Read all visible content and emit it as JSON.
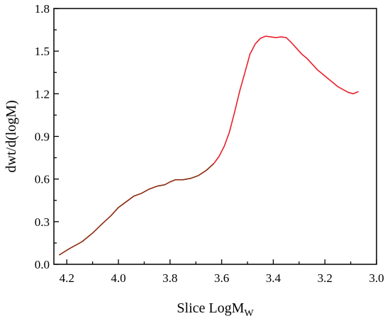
{
  "chart_data": {
    "type": "line",
    "title": "",
    "xlabel": "Slice LogM",
    "xlabel_sub": "W",
    "ylabel": "dwt/d(logM)",
    "xlim": [
      4.25,
      3.0
    ],
    "ylim": [
      0.0,
      1.8
    ],
    "x_reversed": true,
    "grid": false,
    "legend": "none",
    "x_ticks": [
      "4.2",
      "4.0",
      "3.8",
      "3.6",
      "3.4",
      "3.2",
      "3.0"
    ],
    "y_ticks": [
      "0.0",
      "0.3",
      "0.6",
      "0.9",
      "1.2",
      "1.5",
      "1.8"
    ],
    "series": [
      {
        "color": "#8b2a0e",
        "x": [
          4.23,
          4.19,
          4.14,
          4.1,
          4.06,
          4.03,
          4.0,
          3.97,
          3.94,
          3.91,
          3.88,
          3.85,
          3.82,
          3.8,
          3.78,
          3.75,
          3.72,
          3.69,
          3.66,
          3.63
        ],
        "y": [
          0.065,
          0.11,
          0.16,
          0.22,
          0.29,
          0.34,
          0.4,
          0.44,
          0.48,
          0.5,
          0.53,
          0.55,
          0.56,
          0.58,
          0.595,
          0.595,
          0.605,
          0.625,
          0.66,
          0.71
        ]
      },
      {
        "color": "#e8202a",
        "x": [
          3.63,
          3.61,
          3.59,
          3.57,
          3.55,
          3.53,
          3.51,
          3.49,
          3.47,
          3.45,
          3.43,
          3.41,
          3.39,
          3.37,
          3.35,
          3.33,
          3.31,
          3.29,
          3.27,
          3.25,
          3.23,
          3.21,
          3.19,
          3.17,
          3.15,
          3.13,
          3.11,
          3.09,
          3.07
        ],
        "y": [
          0.71,
          0.76,
          0.83,
          0.93,
          1.07,
          1.22,
          1.35,
          1.48,
          1.55,
          1.59,
          1.605,
          1.6,
          1.595,
          1.6,
          1.595,
          1.56,
          1.52,
          1.48,
          1.45,
          1.41,
          1.37,
          1.34,
          1.31,
          1.28,
          1.25,
          1.23,
          1.21,
          1.2,
          1.215
        ]
      }
    ]
  }
}
